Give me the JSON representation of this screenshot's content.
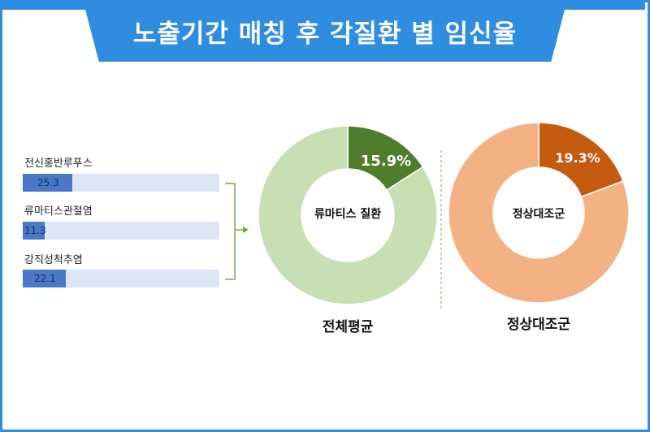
{
  "header": {
    "title": "노출기간 매칭 후 각질환 별 임신율"
  },
  "chart_data": [
    {
      "type": "bar",
      "orientation": "horizontal",
      "categories": [
        "전신홍반루푸스",
        "류마티스관절염",
        "강직성척추염"
      ],
      "values": [
        25.3,
        11.3,
        22.1
      ],
      "xlim": [
        0,
        100
      ]
    },
    {
      "type": "pie",
      "title": "전체평균",
      "center_label": "류마티스 질환",
      "slices": [
        {
          "value": 15.9,
          "label": "15.9%"
        },
        {
          "value": 84.1,
          "label": ""
        }
      ],
      "colors": [
        "#4e7d2b",
        "#c6e0b4"
      ]
    },
    {
      "type": "pie",
      "title": "정상대조군",
      "center_label": "정상대조군",
      "slices": [
        {
          "value": 19.3,
          "label": "19.3%"
        },
        {
          "value": 80.7,
          "label": ""
        }
      ],
      "colors": [
        "#c55a11",
        "#f4b183"
      ]
    }
  ],
  "colors": {
    "frame": "#2e8de0",
    "bar_fill": "#4a77c8",
    "bar_track": "#dce7f5",
    "bracket": "#70ad47"
  }
}
